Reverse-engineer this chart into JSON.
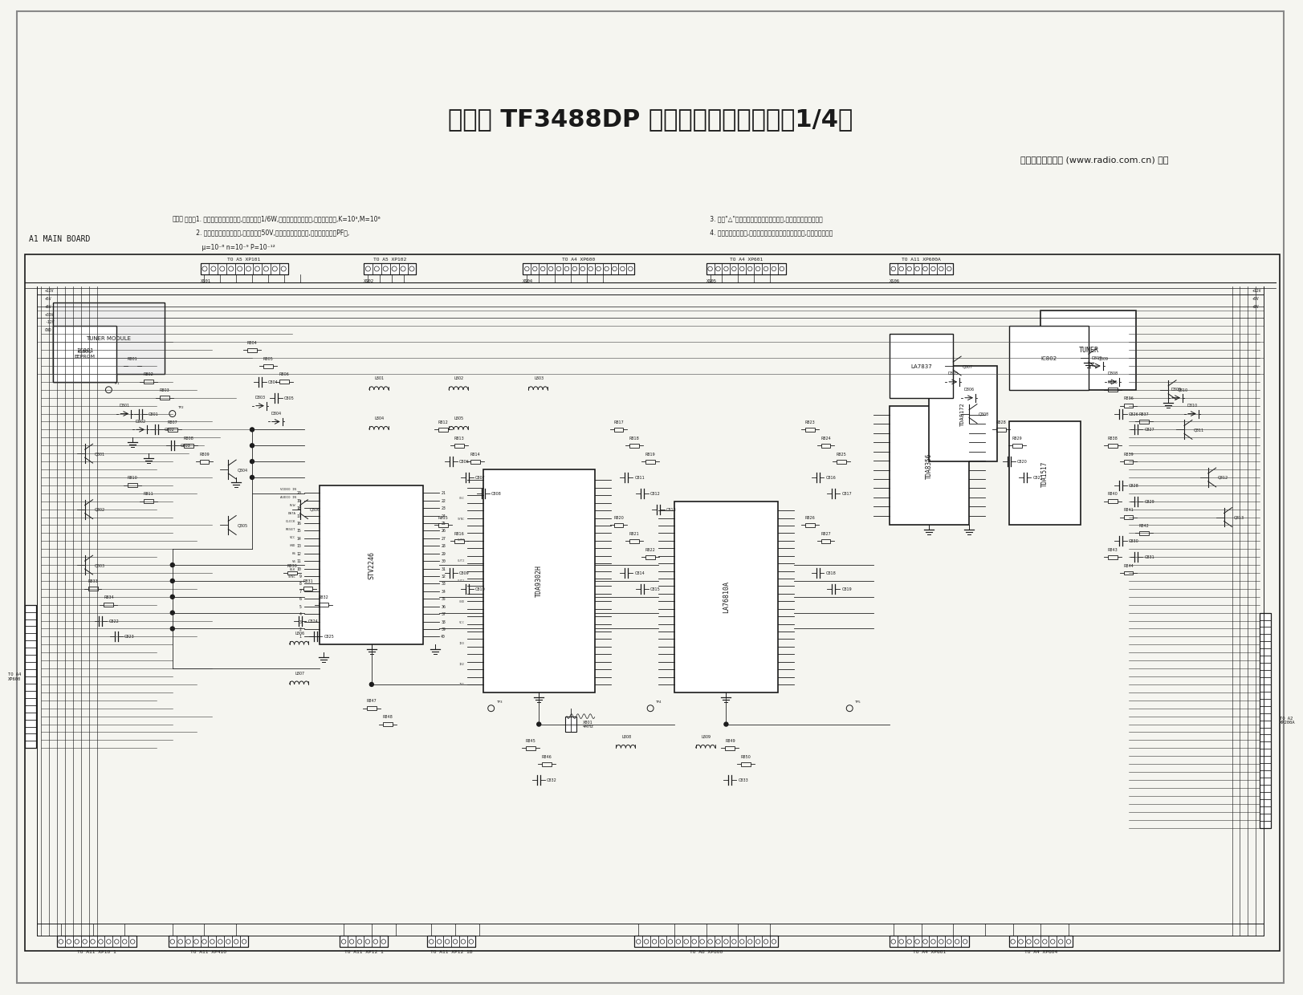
{
  "title": "海信牌 TF3488DP 型彩色电视机电路图（1/4）",
  "publisher": "《无线电》杂志社 (www.radio.com.cn) 制作",
  "board_label": "A1 MAIN BOARD",
  "background_color": "#f5f5f0",
  "line_color": "#1a1a1a",
  "notes": [
    "说明：1. 未标注功率值的电阻器,额定功率为1/6W,未标注单位的电阻器,其单位为欧姆,K=10³,M=10⁶",
    "      2. 未标注标称值的电容器,额定压值为50V,未标注单位的电容器,其单位为皮法（PF）,",
    "         μ=10⁻⁶ n=10⁻⁹ P=10⁻¹²",
    "      3. 带有\"△\"标志的元器件对安全极为重要,只能用指定型号替换。",
    "      4. 此电路图仅供参考,因技术进步或产品改进而引起变动,恕不另行通知。"
  ],
  "connector_labels_top": [
    "TO A5 XP101",
    "TO A5 XP102",
    "TO A4 XP600",
    "TO A4 XP601",
    "TO A11 XP600A"
  ],
  "connector_labels_bottom": [
    "TO A11 XP10 1",
    "TO A11 XP410",
    "TO A11 XP12 1",
    "TO A11 XP12 1B",
    "TO A8 XP800",
    "TO A4 XP601",
    "TO A4 XP604"
  ],
  "connector_labels_left": [
    "TO A4 XP600"
  ],
  "connector_labels_right": [
    "TO A2 XP200A"
  ]
}
